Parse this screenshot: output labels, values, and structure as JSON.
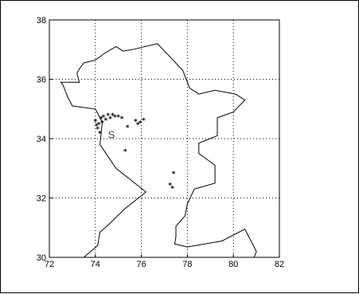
{
  "chart_data": {
    "type": "scatter",
    "title": "",
    "xlabel": "",
    "ylabel": "",
    "xlim": [
      72,
      82
    ],
    "ylim": [
      30,
      38
    ],
    "x_ticks": [
      72,
      74,
      76,
      78,
      80,
      82
    ],
    "y_ticks": [
      30,
      32,
      34,
      36,
      38
    ],
    "x_tick_labels": [
      "72",
      "74",
      "76",
      "78",
      "80",
      "82"
    ],
    "y_tick_labels": [
      "30",
      "32",
      "34",
      "36",
      "38"
    ],
    "grid": true,
    "grid_style": "dotted",
    "marker": "*",
    "station": {
      "label": "S",
      "x": 74.55,
      "y": 34.15
    },
    "boundary": [
      [
        73.5,
        30.0
      ],
      [
        74.1,
        30.4
      ],
      [
        74.2,
        30.85
      ],
      [
        74.5,
        31.05
      ],
      [
        75.3,
        31.65
      ],
      [
        76.2,
        32.2
      ],
      [
        74.9,
        33.0
      ],
      [
        74.2,
        33.8
      ],
      [
        74.3,
        34.55
      ],
      [
        74.0,
        35.0
      ],
      [
        73.0,
        35.1
      ],
      [
        72.8,
        35.4
      ],
      [
        72.6,
        35.8
      ],
      [
        72.5,
        35.9
      ],
      [
        73.3,
        35.9
      ],
      [
        73.2,
        36.2
      ],
      [
        73.3,
        36.35
      ],
      [
        73.5,
        36.55
      ],
      [
        74.0,
        36.65
      ],
      [
        74.45,
        36.9
      ],
      [
        74.9,
        37.1
      ],
      [
        75.2,
        36.95
      ],
      [
        75.6,
        37.0
      ],
      [
        76.7,
        37.2
      ],
      [
        77.8,
        36.3
      ],
      [
        78.1,
        35.7
      ],
      [
        78.5,
        35.5
      ],
      [
        79.2,
        35.63
      ],
      [
        80.1,
        35.5
      ],
      [
        80.5,
        35.3
      ],
      [
        80.0,
        34.9
      ],
      [
        79.3,
        34.7
      ],
      [
        79.3,
        34.1
      ],
      [
        78.5,
        33.85
      ],
      [
        78.5,
        33.5
      ],
      [
        79.2,
        33.1
      ],
      [
        79.2,
        32.5
      ],
      [
        78.3,
        32.3
      ],
      [
        78.0,
        31.8
      ],
      [
        77.9,
        31.4
      ],
      [
        77.5,
        31.05
      ],
      [
        77.5,
        30.7
      ],
      [
        77.45,
        30.45
      ],
      [
        78.0,
        30.35
      ],
      [
        79.5,
        30.55
      ],
      [
        80.5,
        30.95
      ],
      [
        81.0,
        30.2
      ],
      [
        80.9,
        30.0
      ]
    ],
    "points": [
      {
        "x": 74.0,
        "y": 34.6
      },
      {
        "x": 74.05,
        "y": 34.45
      },
      {
        "x": 74.1,
        "y": 34.35
      },
      {
        "x": 74.15,
        "y": 34.5
      },
      {
        "x": 74.2,
        "y": 34.2
      },
      {
        "x": 74.25,
        "y": 34.7
      },
      {
        "x": 74.3,
        "y": 34.55
      },
      {
        "x": 74.35,
        "y": 34.75
      },
      {
        "x": 74.45,
        "y": 34.65
      },
      {
        "x": 74.55,
        "y": 34.8
      },
      {
        "x": 74.65,
        "y": 34.7
      },
      {
        "x": 74.75,
        "y": 34.8
      },
      {
        "x": 74.85,
        "y": 34.75
      },
      {
        "x": 75.0,
        "y": 34.75
      },
      {
        "x": 75.15,
        "y": 34.7
      },
      {
        "x": 75.4,
        "y": 34.4
      },
      {
        "x": 75.75,
        "y": 34.6
      },
      {
        "x": 75.85,
        "y": 34.5
      },
      {
        "x": 75.95,
        "y": 34.55
      },
      {
        "x": 76.1,
        "y": 34.65
      },
      {
        "x": 75.3,
        "y": 33.6
      },
      {
        "x": 77.4,
        "y": 32.85
      },
      {
        "x": 77.25,
        "y": 32.45
      },
      {
        "x": 77.35,
        "y": 32.35
      }
    ]
  }
}
